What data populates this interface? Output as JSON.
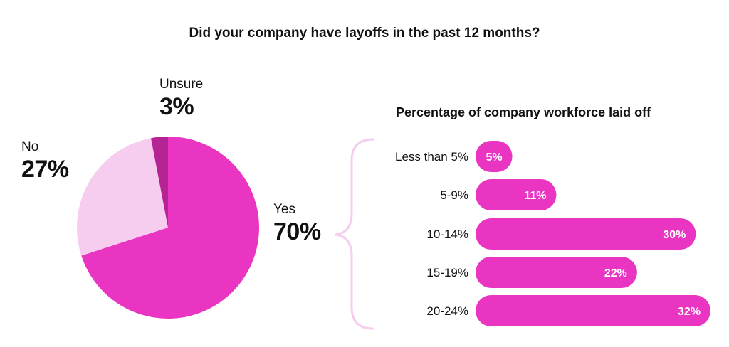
{
  "title": "Did your company have layoffs in the past 12 months?",
  "chart_data": [
    {
      "type": "pie",
      "slices": [
        {
          "name": "Yes",
          "value": 70,
          "label": "70%",
          "color": "#e935c1"
        },
        {
          "name": "No",
          "value": 27,
          "label": "27%",
          "color": "#f6cdee"
        },
        {
          "name": "Unsure",
          "value": 3,
          "label": "3%",
          "color": "#b52492"
        }
      ]
    },
    {
      "type": "bar",
      "orientation": "horizontal",
      "title": "Percentage of company workforce laid off",
      "categories": [
        "Less than 5%",
        "5-9%",
        "10-14%",
        "15-19%",
        "20-24%"
      ],
      "values": [
        5,
        11,
        30,
        22,
        32
      ],
      "value_labels": [
        "5%",
        "11%",
        "30%",
        "22%",
        "32%"
      ],
      "color": "#e935c1"
    }
  ]
}
